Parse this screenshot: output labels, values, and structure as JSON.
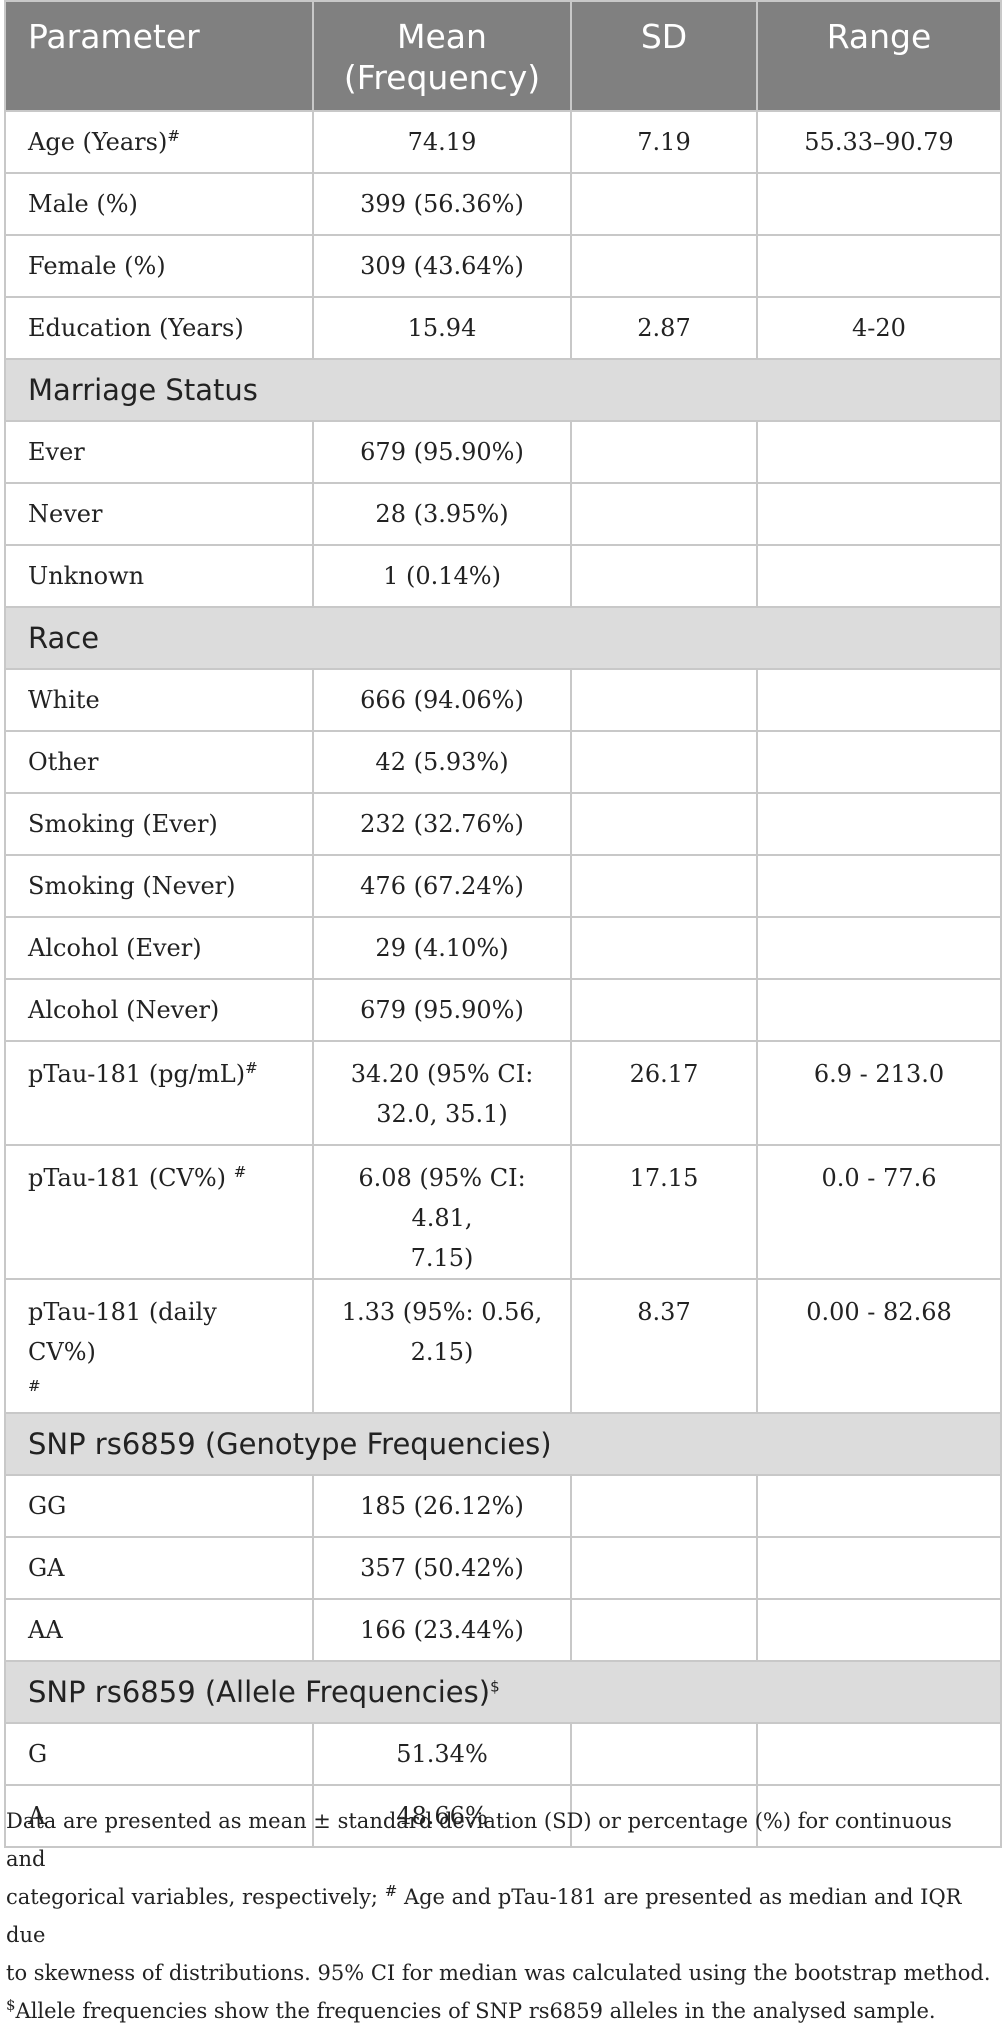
{
  "header": {
    "parameter": "Parameter",
    "mean_line1": "Mean",
    "mean_line2": "(Frequency)",
    "sd": "SD",
    "range": "Range"
  },
  "rows": {
    "age": {
      "label": "Age (Years)",
      "sup": "#",
      "mean": "74.19",
      "sd": "7.19",
      "range": "55.33–90.79"
    },
    "male": {
      "label": "Male (%)",
      "mean": "399 (56.36%)"
    },
    "female": {
      "label": "Female (%)",
      "mean": "309 (43.64%)"
    },
    "education": {
      "label": "Education (Years)",
      "mean": "15.94",
      "sd": "2.87",
      "range": "4-20"
    },
    "marriage_header": "Marriage Status",
    "ever": {
      "label": "Ever",
      "mean": "679 (95.90%)"
    },
    "never": {
      "label": "Never",
      "mean": "28 (3.95%)"
    },
    "unknown": {
      "label": "Unknown",
      "mean": "1 (0.14%)"
    },
    "race_header": "Race",
    "white": {
      "label": "White",
      "mean": "666 (94.06%)"
    },
    "other": {
      "label": "Other",
      "mean": "42 (5.93%)"
    },
    "smoking_ever": {
      "label": "Smoking (Ever)",
      "mean": "232 (32.76%)"
    },
    "smoking_never": {
      "label": "Smoking (Never)",
      "mean": "476 (67.24%)"
    },
    "alcohol_ever": {
      "label": "Alcohol (Ever)",
      "mean": "29 (4.10%)"
    },
    "alcohol_never": {
      "label": "Alcohol (Never)",
      "mean": "679 (95.90%)"
    },
    "ptau": {
      "label": "pTau-181 (pg/mL)",
      "sup": "#",
      "mean_line1": "34.20 (95% CI:",
      "mean_line2": "32.0, 35.1)",
      "sd": "26.17",
      "range": "6.9 - 213.0"
    },
    "ptau_cv": {
      "label": "pTau-181 (CV%) ",
      "sup": "#",
      "mean_line1": "6.08 (95% CI: 4.81,",
      "mean_line2": "7.15)",
      "sd": "17.15",
      "range": "0.0 - 77.6"
    },
    "ptau_daily": {
      "label": "pTau-181 (daily CV%)",
      "sup": "#",
      "mean_line1": "1.33 (95%: 0.56,",
      "mean_line2": "2.15)",
      "sd": "8.37",
      "range": "0.00 - 82.68"
    },
    "genotype_header": "SNP rs6859 (Genotype Frequencies)",
    "gg": {
      "label": "GG",
      "mean": "185 (26.12%)"
    },
    "ga": {
      "label": "GA",
      "mean": "357 (50.42%)"
    },
    "aa": {
      "label": "AA",
      "mean": "166 (23.44%)"
    },
    "allele_header": "SNP rs6859 (Allele Frequencies)",
    "allele_sup": "$",
    "g": {
      "label": "G",
      "mean": "51.34%"
    },
    "a": {
      "label": "A",
      "mean": "48.66%"
    }
  },
  "footnote": {
    "line1": "Data are presented as mean ± standard deviation (SD) or percentage (%) for continuous and",
    "line2_pre": "categorical variables, respectively; ",
    "line2_sup": "#",
    "line2_post": " Age and pTau-181 are presented as median and IQR due",
    "line3": "to skewness of distributions. 95% CI for median was calculated using the bootstrap method.",
    "line4_sup": "$",
    "line4_post": "Allele frequencies show the frequencies of SNP rs6859 alleles in the analysed sample."
  }
}
